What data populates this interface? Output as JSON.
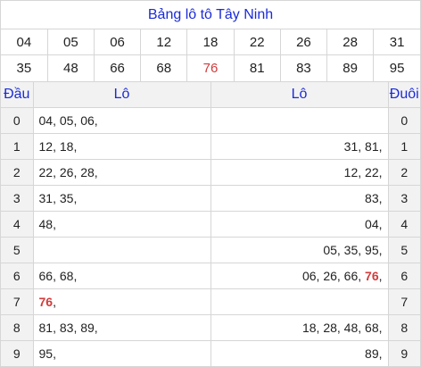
{
  "title": "Bảng lô tô Tây Ninh",
  "numbers_row1": [
    "04",
    "05",
    "06",
    "12",
    "18",
    "22",
    "26",
    "28",
    "31"
  ],
  "numbers_row2": [
    "35",
    "48",
    "66",
    "68",
    "76",
    "81",
    "83",
    "89",
    "95"
  ],
  "highlight_number": "76",
  "headers": {
    "dau": "Đầu",
    "lo_left": "Lô",
    "lo_right": "Lô",
    "duoi": "Đuôi"
  },
  "rows": [
    {
      "dau": "0",
      "left": [
        "04",
        "05",
        "06"
      ],
      "right": [],
      "duoi": "0"
    },
    {
      "dau": "1",
      "left": [
        "12",
        "18"
      ],
      "right": [
        "31",
        "81"
      ],
      "duoi": "1"
    },
    {
      "dau": "2",
      "left": [
        "22",
        "26",
        "28"
      ],
      "right": [
        "12",
        "22"
      ],
      "duoi": "2"
    },
    {
      "dau": "3",
      "left": [
        "31",
        "35"
      ],
      "right": [
        "83"
      ],
      "duoi": "3"
    },
    {
      "dau": "4",
      "left": [
        "48"
      ],
      "right": [
        "04"
      ],
      "duoi": "4"
    },
    {
      "dau": "5",
      "left": [],
      "right": [
        "05",
        "35",
        "95"
      ],
      "duoi": "5"
    },
    {
      "dau": "6",
      "left": [
        "66",
        "68"
      ],
      "right": [
        "06",
        "26",
        "66",
        "76"
      ],
      "duoi": "6"
    },
    {
      "dau": "7",
      "left": [
        "76"
      ],
      "right": [],
      "duoi": "7"
    },
    {
      "dau": "8",
      "left": [
        "81",
        "83",
        "89"
      ],
      "right": [
        "18",
        "28",
        "48",
        "68"
      ],
      "duoi": "8"
    },
    {
      "dau": "9",
      "left": [
        "95"
      ],
      "right": [
        "89"
      ],
      "duoi": "9"
    }
  ],
  "colors": {
    "title": "#1b2bd6",
    "highlight": "#d23b3b",
    "header_bg": "#f2f2f2",
    "border": "#d6d6d6"
  }
}
